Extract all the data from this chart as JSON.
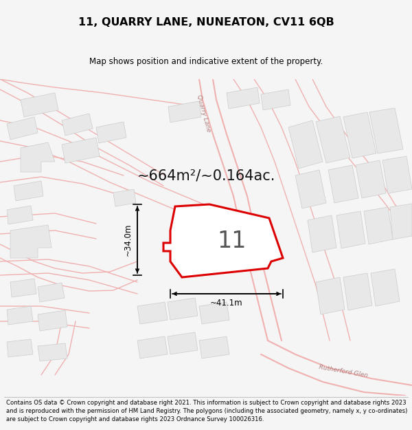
{
  "title": "11, QUARRY LANE, NUNEATON, CV11 6QB",
  "subtitle": "Map shows position and indicative extent of the property.",
  "area_text": "~664m²/~0.164ac.",
  "number_label": "11",
  "width_label": "~41.1m",
  "height_label": "~34.0m",
  "footer": "Contains OS data © Crown copyright and database right 2021. This information is subject to Crown copyright and database rights 2023 and is reproduced with the permission of HM Land Registry. The polygons (including the associated geometry, namely x, y co-ordinates) are subject to Crown copyright and database rights 2023 Ordnance Survey 100026316.",
  "bg_white": "#ffffff",
  "bg_page": "#f5f5f5",
  "road_line_color": "#f0b0b0",
  "building_outline_color": "#cccccc",
  "building_fill_color": "#e8e8e8",
  "property_outline_color": "#dd0000",
  "property_fill_color": "#ffffff",
  "street_label_color": "#b08080",
  "title_color": "#000000",
  "footer_color": "#000000",
  "arrow_color": "#000000",
  "area_color": "#111111"
}
